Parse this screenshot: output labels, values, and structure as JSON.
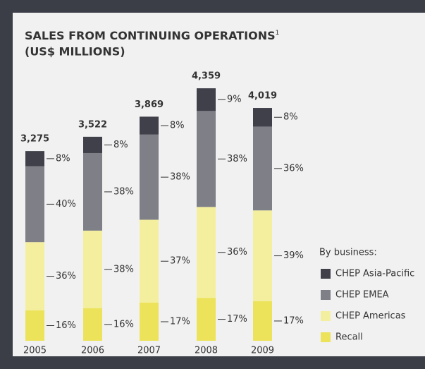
{
  "chart_data": {
    "type": "stacked_bar",
    "title": "SALES FROM CONTINUING OPERATIONS",
    "title_note": "1",
    "subtitle": "(US$ MILLIONS)",
    "categories": [
      "2005",
      "2006",
      "2007",
      "2008",
      "2009"
    ],
    "totals": {
      "values": [
        3275,
        3522,
        3869,
        4359,
        4019
      ],
      "value_labels": [
        "3,275",
        "3,522",
        "3,869",
        "4,359",
        "4,019"
      ]
    },
    "legend_title": "By business:",
    "series": [
      {
        "name": "CHEP Asia-Pacific",
        "color": "#3f4049",
        "values": [
          8,
          8,
          8,
          9,
          8
        ],
        "value_labels": [
          "8%",
          "8%",
          "8%",
          "9%",
          "8%"
        ]
      },
      {
        "name": "CHEP EMEA",
        "color": "#7e7f87",
        "values": [
          40,
          38,
          38,
          38,
          36
        ],
        "value_labels": [
          "40%",
          "38%",
          "38%",
          "38%",
          "36%"
        ]
      },
      {
        "name": "CHEP Americas",
        "color": "#f4ef9e",
        "values": [
          36,
          38,
          37,
          36,
          39
        ],
        "value_labels": [
          "36%",
          "38%",
          "37%",
          "36%",
          "39%"
        ]
      },
      {
        "name": "Recall",
        "color": "#ece35b",
        "values": [
          16,
          16,
          17,
          17,
          17
        ],
        "value_labels": [
          "16%",
          "16%",
          "17%",
          "17%",
          "17%"
        ]
      }
    ]
  }
}
